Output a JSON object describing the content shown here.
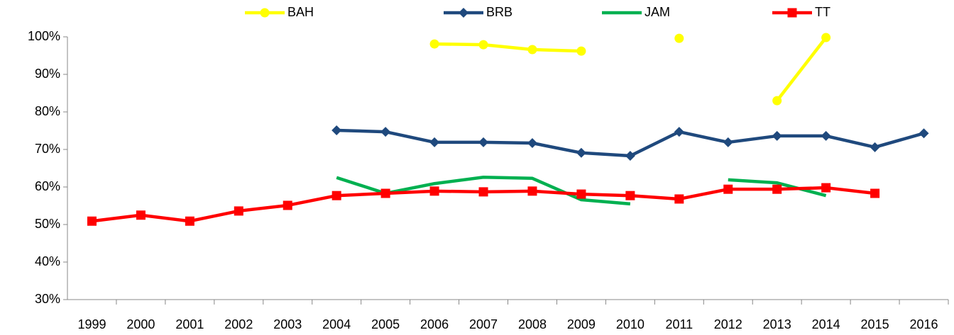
{
  "chart_data": {
    "type": "line",
    "categories": [
      "1999",
      "2000",
      "2001",
      "2002",
      "2003",
      "2004",
      "2005",
      "2006",
      "2007",
      "2008",
      "2009",
      "2010",
      "2011",
      "2012",
      "2013",
      "2014",
      "2015",
      "2016"
    ],
    "series": [
      {
        "name": "BAH",
        "color": "#ffff00",
        "marker": "circle",
        "values": [
          null,
          null,
          null,
          null,
          null,
          null,
          null,
          98.1,
          97.9,
          96.6,
          96.2,
          null,
          99.6,
          null,
          83.0,
          99.8,
          null,
          null
        ]
      },
      {
        "name": "BRB",
        "color": "#1f497d",
        "marker": "diamond",
        "values": [
          null,
          null,
          null,
          null,
          null,
          75.1,
          74.7,
          71.9,
          71.9,
          71.7,
          69.1,
          68.3,
          74.7,
          71.9,
          73.6,
          73.6,
          70.6,
          74.3
        ]
      },
      {
        "name": "JAM",
        "color": "#00b050",
        "marker": "none",
        "values": [
          null,
          null,
          null,
          null,
          null,
          62.5,
          58.3,
          60.9,
          62.6,
          62.3,
          56.6,
          55.5,
          null,
          61.9,
          61.1,
          57.7,
          null,
          null
        ]
      },
      {
        "name": "TT",
        "color": "#ff0000",
        "marker": "square",
        "values": [
          50.9,
          52.5,
          50.9,
          53.6,
          55.1,
          57.7,
          58.3,
          58.9,
          58.7,
          58.9,
          58.1,
          57.7,
          56.8,
          59.4,
          59.4,
          59.8,
          58.3,
          null
        ]
      }
    ],
    "ylim": [
      30,
      100
    ],
    "yticks": [
      {
        "value": 30,
        "label": "30%"
      },
      {
        "value": 40,
        "label": "40%"
      },
      {
        "value": 50,
        "label": "50%"
      },
      {
        "value": 60,
        "label": "60%"
      },
      {
        "value": 70,
        "label": "70%"
      },
      {
        "value": 80,
        "label": "80%"
      },
      {
        "value": 90,
        "label": "90%"
      },
      {
        "value": 100,
        "label": "100%"
      }
    ],
    "grid": false,
    "legend": "top"
  }
}
